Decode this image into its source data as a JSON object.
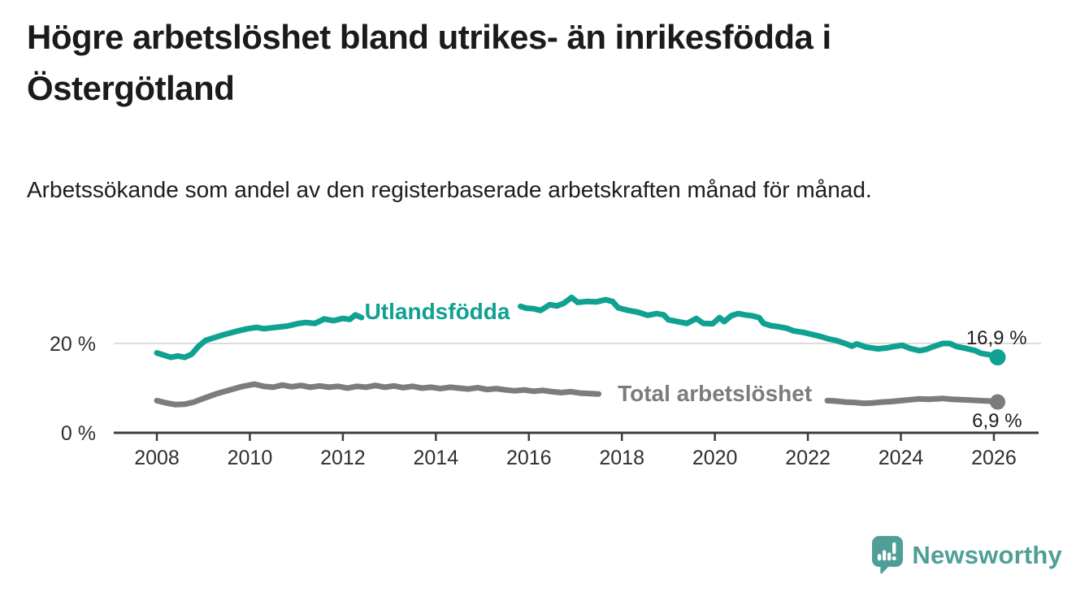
{
  "header": {
    "title": "Högre arbetslöshet bland utrikes- än inrikesfödda i Östergötland",
    "subtitle": "Arbetssökande som andel av den registerbaserade arbetskraften månad för månad."
  },
  "footer": {
    "brand": "Newsworthy",
    "brand_color": "#4f9f97"
  },
  "chart_data": {
    "type": "line",
    "unit": "%",
    "x_base": 2008,
    "x_ticks": [
      2008,
      2010,
      2012,
      2014,
      2016,
      2018,
      2020,
      2022,
      2024,
      2026
    ],
    "x_range": [
      2008,
      2026.1
    ],
    "y_range": [
      0,
      33
    ],
    "y_ticks": [
      {
        "value": 20,
        "label": "20 %",
        "grid": true
      },
      {
        "value": 0,
        "label": "0 %",
        "grid": false
      }
    ],
    "grid": "single light horizontal gridline at 20 %, dark x-axis baseline at 0 %",
    "legend_position": "inline labels sitting on the lines (lines are interrupted under each label)",
    "series": [
      {
        "name": "Utlandsfödda",
        "color": "#0fa192",
        "end_value": 16.9,
        "end_label": "16,9 %",
        "end_label_position": "above",
        "label_anchor": {
          "year": 2014.03,
          "value": 27.3
        },
        "segments": [
          [
            [
              2008.0,
              17.9
            ],
            [
              2008.15,
              17.4
            ],
            [
              2008.3,
              16.9
            ],
            [
              2008.45,
              17.2
            ],
            [
              2008.6,
              16.9
            ],
            [
              2008.75,
              17.6
            ],
            [
              2008.9,
              19.4
            ],
            [
              2009.05,
              20.7
            ],
            [
              2009.2,
              21.2
            ],
            [
              2009.45,
              22.0
            ],
            [
              2009.7,
              22.7
            ],
            [
              2009.95,
              23.3
            ],
            [
              2010.15,
              23.6
            ],
            [
              2010.3,
              23.3
            ],
            [
              2010.55,
              23.6
            ],
            [
              2010.8,
              23.9
            ],
            [
              2011.05,
              24.5
            ],
            [
              2011.2,
              24.7
            ],
            [
              2011.4,
              24.5
            ],
            [
              2011.6,
              25.5
            ],
            [
              2011.8,
              25.1
            ],
            [
              2012.0,
              25.6
            ],
            [
              2012.15,
              25.4
            ],
            [
              2012.27,
              26.4
            ],
            [
              2012.4,
              25.8
            ]
          ],
          [
            [
              2015.82,
              28.3
            ],
            [
              2015.95,
              27.9
            ],
            [
              2016.1,
              27.8
            ],
            [
              2016.25,
              27.4
            ],
            [
              2016.45,
              28.7
            ],
            [
              2016.6,
              28.4
            ],
            [
              2016.75,
              29.0
            ],
            [
              2016.92,
              30.3
            ],
            [
              2017.05,
              29.2
            ],
            [
              2017.25,
              29.4
            ],
            [
              2017.45,
              29.3
            ],
            [
              2017.65,
              29.8
            ],
            [
              2017.8,
              29.4
            ],
            [
              2017.92,
              28.0
            ],
            [
              2018.1,
              27.5
            ],
            [
              2018.35,
              27.0
            ],
            [
              2018.55,
              26.3
            ],
            [
              2018.75,
              26.7
            ],
            [
              2018.9,
              26.4
            ],
            [
              2019.0,
              25.3
            ],
            [
              2019.2,
              24.9
            ],
            [
              2019.4,
              24.5
            ],
            [
              2019.6,
              25.6
            ],
            [
              2019.75,
              24.5
            ],
            [
              2019.95,
              24.4
            ],
            [
              2020.1,
              25.8
            ],
            [
              2020.2,
              24.9
            ],
            [
              2020.35,
              26.2
            ],
            [
              2020.5,
              26.7
            ],
            [
              2020.65,
              26.4
            ],
            [
              2020.8,
              26.2
            ],
            [
              2020.95,
              25.8
            ],
            [
              2021.05,
              24.5
            ],
            [
              2021.2,
              24.0
            ],
            [
              2021.4,
              23.7
            ],
            [
              2021.55,
              23.4
            ],
            [
              2021.7,
              22.8
            ],
            [
              2021.9,
              22.5
            ],
            [
              2022.1,
              22.0
            ],
            [
              2022.3,
              21.5
            ],
            [
              2022.45,
              21.0
            ],
            [
              2022.6,
              20.7
            ],
            [
              2022.8,
              20.0
            ],
            [
              2022.95,
              19.4
            ],
            [
              2023.05,
              19.9
            ],
            [
              2023.25,
              19.2
            ],
            [
              2023.5,
              18.8
            ],
            [
              2023.7,
              19.0
            ],
            [
              2023.85,
              19.3
            ],
            [
              2024.03,
              19.6
            ],
            [
              2024.2,
              18.9
            ],
            [
              2024.4,
              18.4
            ],
            [
              2024.55,
              18.7
            ],
            [
              2024.7,
              19.3
            ],
            [
              2024.9,
              20.0
            ],
            [
              2025.05,
              20.0
            ],
            [
              2025.2,
              19.3
            ],
            [
              2025.4,
              18.9
            ],
            [
              2025.6,
              18.4
            ],
            [
              2025.72,
              17.8
            ],
            [
              2025.9,
              17.5
            ],
            [
              2026.08,
              16.9
            ]
          ]
        ]
      },
      {
        "name": "Total arbetslöshet",
        "color": "#7c7c7c",
        "end_value": 6.9,
        "end_label": "6,9 %",
        "end_label_position": "below",
        "label_anchor": {
          "year": 2020.0,
          "value": 8.9
        },
        "segments": [
          [
            [
              2008.0,
              7.2
            ],
            [
              2008.2,
              6.7
            ],
            [
              2008.4,
              6.3
            ],
            [
              2008.6,
              6.4
            ],
            [
              2008.8,
              6.9
            ],
            [
              2009.0,
              7.7
            ],
            [
              2009.3,
              8.8
            ],
            [
              2009.6,
              9.7
            ],
            [
              2009.85,
              10.4
            ],
            [
              2010.1,
              10.9
            ],
            [
              2010.3,
              10.4
            ],
            [
              2010.5,
              10.2
            ],
            [
              2010.7,
              10.7
            ],
            [
              2010.9,
              10.3
            ],
            [
              2011.1,
              10.6
            ],
            [
              2011.3,
              10.2
            ],
            [
              2011.5,
              10.5
            ],
            [
              2011.7,
              10.2
            ],
            [
              2011.9,
              10.4
            ],
            [
              2012.1,
              10.0
            ],
            [
              2012.3,
              10.4
            ],
            [
              2012.5,
              10.2
            ],
            [
              2012.7,
              10.6
            ],
            [
              2012.9,
              10.2
            ],
            [
              2013.1,
              10.5
            ],
            [
              2013.3,
              10.1
            ],
            [
              2013.5,
              10.4
            ],
            [
              2013.7,
              10.0
            ],
            [
              2013.9,
              10.2
            ],
            [
              2014.1,
              9.9
            ],
            [
              2014.3,
              10.2
            ],
            [
              2014.5,
              10.0
            ],
            [
              2014.7,
              9.8
            ],
            [
              2014.9,
              10.1
            ],
            [
              2015.1,
              9.7
            ],
            [
              2015.3,
              9.9
            ],
            [
              2015.5,
              9.6
            ],
            [
              2015.7,
              9.4
            ],
            [
              2015.9,
              9.6
            ],
            [
              2016.1,
              9.3
            ],
            [
              2016.3,
              9.5
            ],
            [
              2016.5,
              9.2
            ],
            [
              2016.7,
              9.0
            ],
            [
              2016.9,
              9.2
            ],
            [
              2017.1,
              8.9
            ],
            [
              2017.3,
              8.8
            ],
            [
              2017.5,
              8.7
            ]
          ],
          [
            [
              2022.42,
              7.2
            ],
            [
              2022.6,
              7.1
            ],
            [
              2022.8,
              6.9
            ],
            [
              2023.0,
              6.8
            ],
            [
              2023.2,
              6.6
            ],
            [
              2023.4,
              6.7
            ],
            [
              2023.6,
              6.9
            ],
            [
              2023.8,
              7.0
            ],
            [
              2024.0,
              7.2
            ],
            [
              2024.2,
              7.4
            ],
            [
              2024.4,
              7.6
            ],
            [
              2024.6,
              7.5
            ],
            [
              2024.9,
              7.7
            ],
            [
              2025.1,
              7.5
            ],
            [
              2025.3,
              7.4
            ],
            [
              2025.5,
              7.3
            ],
            [
              2025.7,
              7.2
            ],
            [
              2025.9,
              7.1
            ],
            [
              2026.08,
              6.9
            ]
          ]
        ]
      }
    ]
  }
}
